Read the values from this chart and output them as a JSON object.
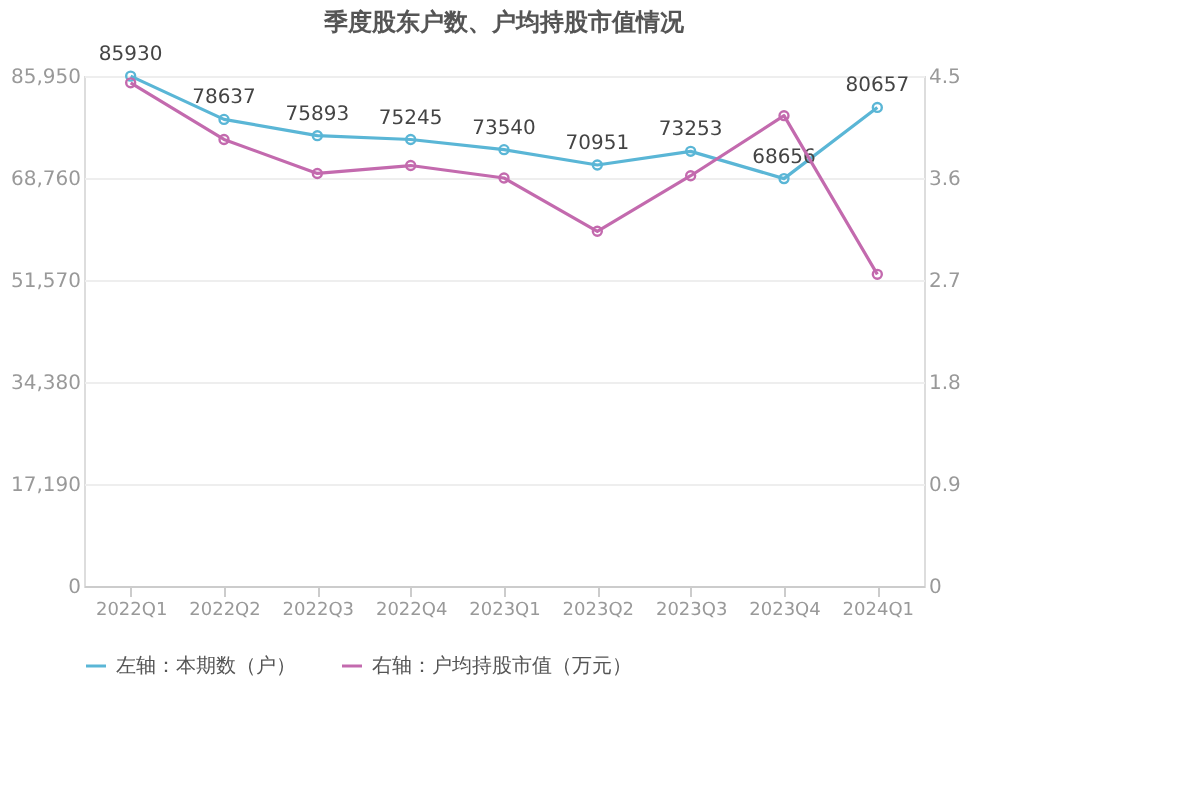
{
  "chart_data": {
    "type": "line",
    "title": "季度股东户数、户均持股市值情况",
    "categories": [
      "2022Q1",
      "2022Q2",
      "2022Q3",
      "2022Q4",
      "2023Q1",
      "2023Q2",
      "2023Q3",
      "2023Q4",
      "2024Q1"
    ],
    "series": [
      {
        "name": "左轴：本期数（户）",
        "color": "#5ab6d6",
        "values": [
          85930,
          78637,
          75893,
          75245,
          73540,
          70951,
          73253,
          68656,
          80657
        ],
        "value_labels": [
          "85930",
          "78637",
          "75893",
          "75245",
          "73540",
          "70951",
          "73253",
          "68656",
          "80657"
        ]
      },
      {
        "name": "右轴：户均持股市值（万元）",
        "color": "#c36aae",
        "axis": "y2",
        "values": [
          4.44,
          3.94,
          3.64,
          3.71,
          3.6,
          3.13,
          3.62,
          4.15,
          2.75
        ]
      }
    ],
    "ylim": [
      0,
      85950
    ],
    "yticks": [
      0,
      {
        "value": 17190,
        "label": "17,190"
      },
      {
        "value": 34380,
        "label": "34,380"
      },
      {
        "value": 51570,
        "label": "51,570"
      },
      {
        "value": 68760,
        "label": "68,760"
      },
      {
        "value": 85950,
        "label": "85,950"
      }
    ],
    "y2lim": [
      0,
      4.5
    ],
    "y2ticks": [
      0,
      0.9,
      1.8,
      2.7,
      3.6,
      4.5
    ],
    "grid": "y",
    "legend": "bottom",
    "marker": "circle",
    "line_style": "solid"
  }
}
